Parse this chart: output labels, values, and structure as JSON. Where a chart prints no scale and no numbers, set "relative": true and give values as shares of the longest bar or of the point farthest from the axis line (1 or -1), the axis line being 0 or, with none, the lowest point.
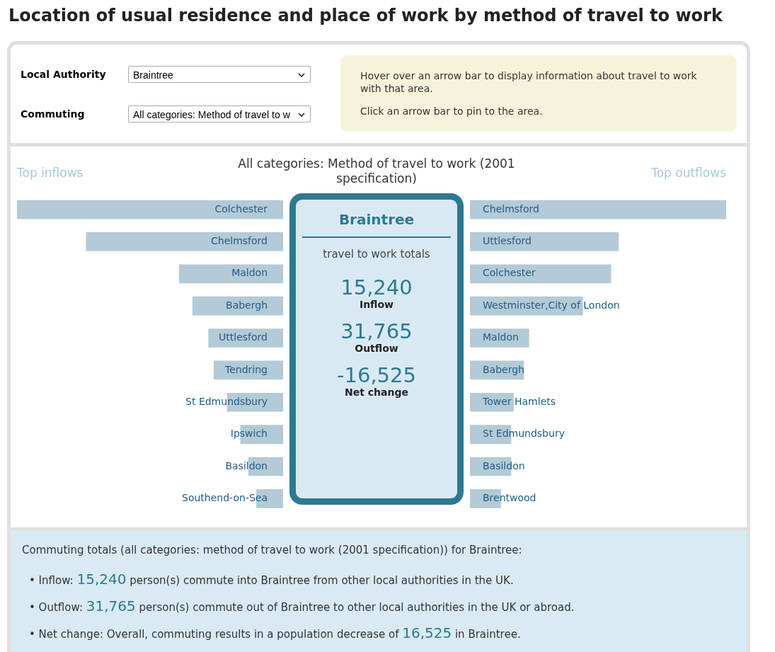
{
  "chart_data": [
    {
      "type": "other",
      "title": "Location of usual residence and place of work by method of travel to work",
      "annotations": [
        "Local Authority",
        "Braintree",
        "Commuting",
        "All categories: Method of travel to w",
        "Hover over an arrow bar to display information about travel to work with that area.",
        "Click an arrow bar to pin to the area."
      ]
    },
    {
      "type": "bar",
      "orientation": "horizontal",
      "relative": true,
      "title": "Top inflows",
      "categories": [
        "Colchester",
        "Chelmsford",
        "Maldon",
        "Babergh",
        "Uttlesford",
        "Tendring",
        "St Edmundsbury",
        "Ipswich",
        "Basildon",
        "Southend-on-Sea"
      ],
      "color": "#b4cad6",
      "values": [
        1,
        0.74,
        0.39,
        0.34,
        0.28,
        0.26,
        0.21,
        0.16,
        0.13,
        0.1
      ]
    },
    {
      "type": "other",
      "title": "Braintree",
      "subtitle": "All categories: Method of travel to work (2001 specification)",
      "annotations": [
        "travel to work totals",
        "15,240",
        "Inflow",
        "31,765",
        "Outflow",
        "-16,525",
        "Net change"
      ]
    },
    {
      "type": "bar",
      "orientation": "horizontal",
      "relative": true,
      "title": "Top outflows",
      "categories": [
        "Chelmsford",
        "Uttlesford",
        "Colchester",
        "Westminster,City of London",
        "Maldon",
        "Babergh",
        "Tower Hamlets",
        "St Edmundsbury",
        "Basildon",
        "Brentwood"
      ],
      "color": "#b4cad6",
      "values": [
        1,
        0.58,
        0.55,
        0.44,
        0.23,
        0.21,
        0.17,
        0.16,
        0.16,
        0.12
      ]
    },
    {
      "type": "other",
      "annotations": [
        "Commuting totals (all categories: method of travel to work (2001 specification)) for Braintree:",
        "• Inflow: 15,240 person(s) commute into Braintree from other local authorities in the UK.",
        "• Outflow: 31,765 person(s) commute out of Braintree to other local authorities in the UK or abroad.",
        "• Net change: Overall, commuting results in a population decrease of 16,525 in Braintree."
      ]
    }
  ]
}
